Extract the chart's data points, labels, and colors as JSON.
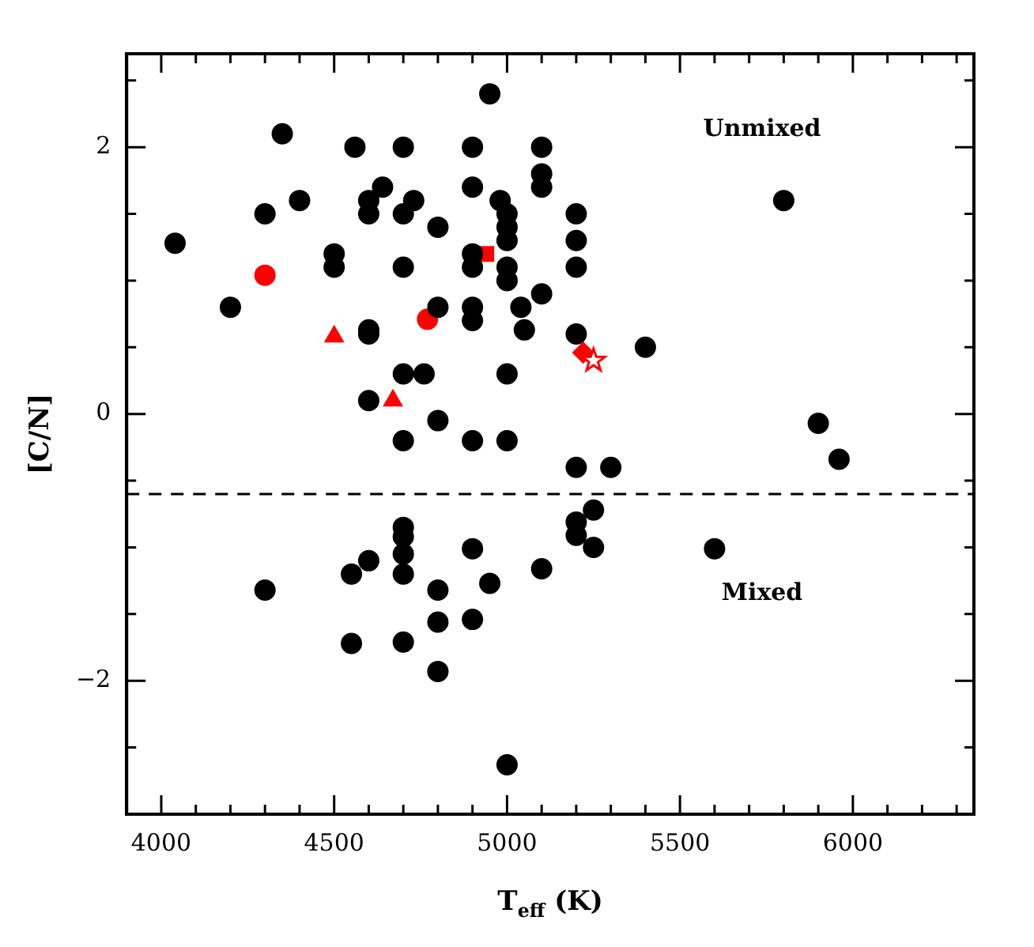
{
  "chart_data": {
    "type": "scatter",
    "xlabel": "T$_{eff}$ (K)",
    "ylabel": "[C/N]",
    "annotations": [
      "Unmixed",
      "Mixed"
    ],
    "xlim": [
      3900,
      6350
    ],
    "xticks": [
      {
        "value": 3900,
        "label": null
      },
      4000,
      {
        "value": 4100,
        "label": null
      },
      {
        "value": 4200,
        "label": null
      },
      {
        "value": 4300,
        "label": null
      },
      {
        "value": 4400,
        "label": null
      },
      4500,
      {
        "value": 4600,
        "label": null
      },
      {
        "value": 4700,
        "label": null
      },
      {
        "value": 4800,
        "label": null
      },
      {
        "value": 4900,
        "label": null
      },
      5000,
      {
        "value": 5100,
        "label": null
      },
      {
        "value": 5200,
        "label": null
      },
      {
        "value": 5300,
        "label": null
      },
      {
        "value": 5400,
        "label": null
      },
      5500,
      {
        "value": 5600,
        "label": null
      },
      {
        "value": 5700,
        "label": null
      },
      {
        "value": 5800,
        "label": null
      },
      {
        "value": 5900,
        "label": null
      },
      6000,
      {
        "value": 6100,
        "label": null
      },
      {
        "value": 6200,
        "label": null
      },
      {
        "value": 6300,
        "label": null
      }
    ],
    "ylim": [
      -3,
      2.7
    ],
    "yticks": [
      {
        "value": -3,
        "label": null
      },
      {
        "value": -2.5,
        "label": null
      },
      {
        "value": -2,
        "label": "−2"
      },
      {
        "value": -1.5,
        "label": null
      },
      {
        "value": -1,
        "label": null
      },
      {
        "value": -0.5,
        "label": null
      },
      0,
      {
        "value": 0.5,
        "label": null
      },
      {
        "value": 1,
        "label": null
      },
      {
        "value": 1.5,
        "label": null
      },
      2,
      {
        "value": 2.5,
        "label": null
      }
    ],
    "grid": false,
    "legend": false,
    "ref_lines": [
      {
        "axis": "y",
        "value": -0.6,
        "line_style": "dashed",
        "color": "#000000"
      }
    ],
    "series": [
      {
        "color": "#000000",
        "marker": "circle",
        "x": [
          4040,
          4200,
          4350,
          4300,
          4400,
          4500,
          4500,
          4560,
          4600,
          4600,
          4640,
          4700,
          4700,
          4730,
          4700,
          4800,
          4600,
          4600,
          4800,
          4700,
          4760,
          4600,
          4800,
          4700,
          4900,
          4900,
          4900,
          4900,
          4900,
          4900,
          4950,
          4980,
          5000,
          5000,
          5000,
          5000,
          5000,
          5040,
          5050,
          5000,
          4900,
          5000,
          5100,
          5100,
          5100,
          5100,
          5200,
          5200,
          5200,
          5200,
          5200,
          5300,
          5400,
          5800,
          5900,
          5960,
          5250,
          5200,
          5200,
          5250,
          5600,
          4700,
          4700,
          4700,
          4700,
          4900,
          4600,
          4550,
          5100,
          4300,
          4800,
          4950,
          4800,
          4900,
          4550,
          4700,
          4800,
          5000
        ],
        "values": [
          1.28,
          0.8,
          2.1,
          1.5,
          1.6,
          1.2,
          1.1,
          2.0,
          1.6,
          1.5,
          1.7,
          2.0,
          1.5,
          1.6,
          1.1,
          1.4,
          0.63,
          0.6,
          0.8,
          0.3,
          0.3,
          0.1,
          -0.05,
          -0.2,
          2.0,
          1.7,
          1.2,
          1.1,
          0.8,
          0.7,
          2.4,
          1.6,
          1.5,
          1.4,
          1.3,
          1.1,
          1.0,
          0.8,
          0.63,
          0.3,
          -0.2,
          -0.2,
          2.0,
          1.8,
          1.7,
          0.9,
          1.5,
          1.3,
          1.1,
          0.6,
          -0.4,
          -0.4,
          0.5,
          1.6,
          -0.07,
          -0.34,
          -0.72,
          -0.81,
          -0.91,
          -1.0,
          -1.01,
          -0.85,
          -0.92,
          -1.05,
          -1.2,
          -1.01,
          -1.1,
          -1.2,
          -1.16,
          -1.32,
          -1.32,
          -1.27,
          -1.56,
          -1.54,
          -1.72,
          -1.71,
          -1.93,
          -2.63
        ]
      },
      {
        "color": "#ff0000",
        "marker": "circle",
        "x": [
          4300
        ],
        "values": [
          1.04
        ]
      },
      {
        "color": "#ff0000",
        "marker": "triangle",
        "x": [
          4500
        ],
        "values": [
          0.58
        ]
      },
      {
        "color": "#ff0000",
        "marker": "circle",
        "x": [
          4770
        ],
        "values": [
          0.71
        ]
      },
      {
        "color": "#ff0000",
        "marker": "triangle",
        "x": [
          4670
        ],
        "values": [
          0.1
        ]
      },
      {
        "color": "#ff0000",
        "marker": "square",
        "x": [
          4940
        ],
        "values": [
          1.2
        ]
      },
      {
        "color": "#ff0000",
        "marker": "diamond",
        "x": [
          5220
        ],
        "values": [
          0.46
        ]
      },
      {
        "color": "#ff0000",
        "marker": "star",
        "x": [
          5250
        ],
        "values": [
          0.4
        ]
      }
    ]
  }
}
